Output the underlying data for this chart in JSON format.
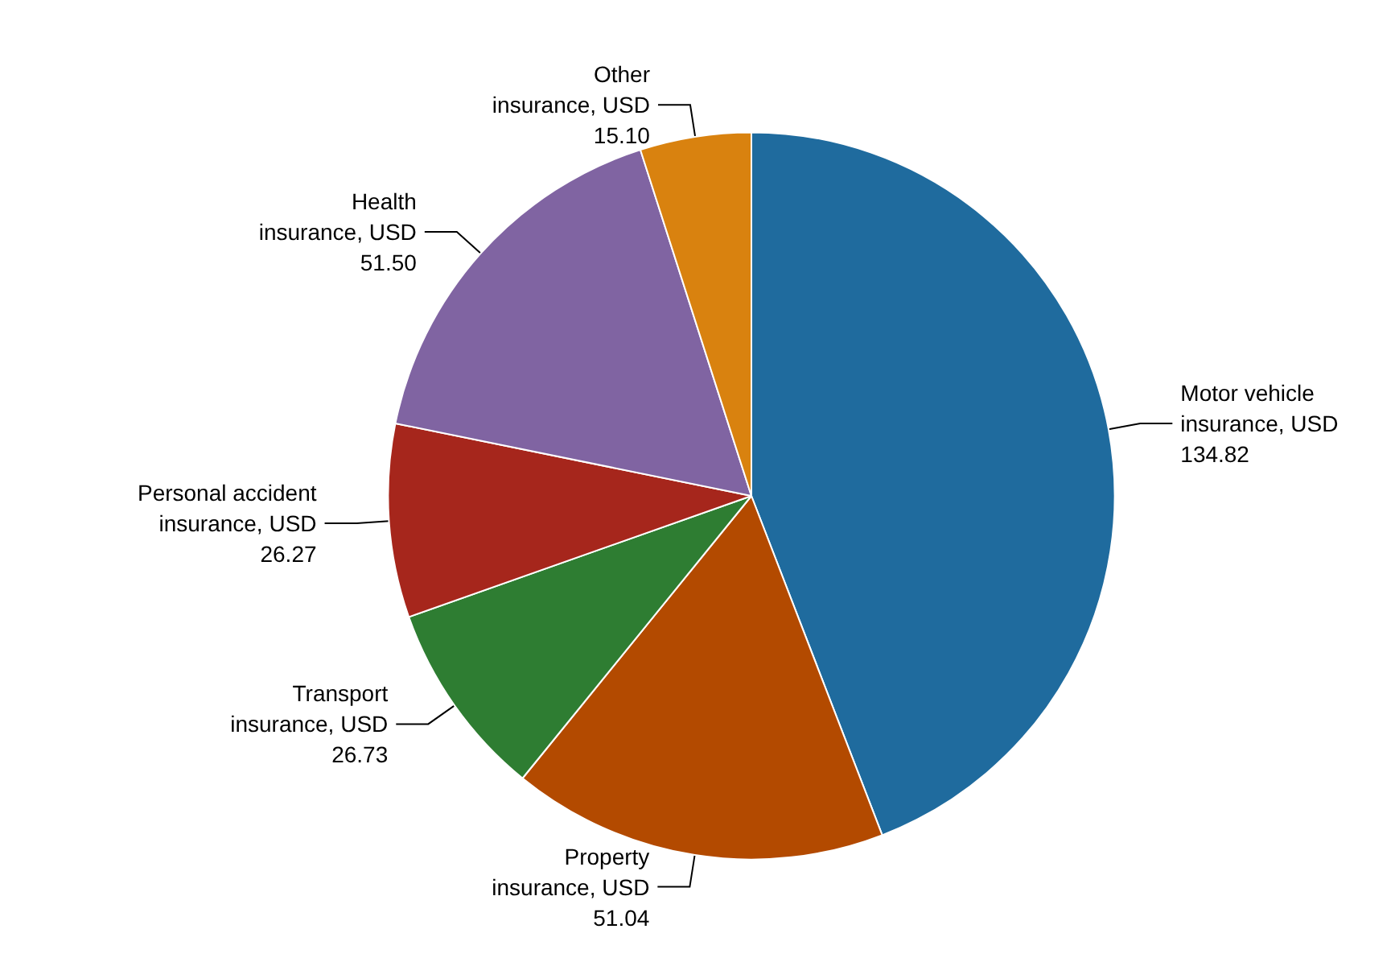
{
  "chart_data": {
    "type": "pie",
    "categories": [
      "Motor vehicle insurance",
      "Property insurance",
      "Transport insurance",
      "Personal accident insurance",
      "Health insurance",
      "Other insurance"
    ],
    "values": [
      134.82,
      51.04,
      26.73,
      26.27,
      51.5,
      15.1
    ],
    "value_labels": [
      "USD 134.82",
      "USD 51.04",
      "USD 26.73",
      "USD 26.27",
      "USD 51.50",
      "USD 15.10"
    ],
    "colors": [
      "#1f6b9e",
      "#b34a00",
      "#2e7d32",
      "#a6261c",
      "#8064a2",
      "#d9820f"
    ],
    "legend": false
  }
}
